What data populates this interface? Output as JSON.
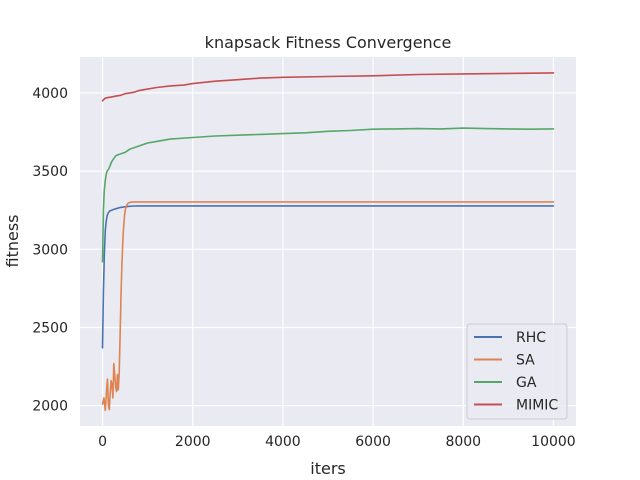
{
  "chart_data": {
    "type": "line",
    "title": "knapsack Fitness Convergence",
    "xlabel": "iters",
    "ylabel": "fitness",
    "xlim": [
      -500,
      10500
    ],
    "ylim": [
      1870,
      4230
    ],
    "xticks": [
      0,
      2000,
      4000,
      6000,
      8000,
      10000
    ],
    "yticks": [
      2000,
      2500,
      3000,
      3500,
      4000
    ],
    "grid": true,
    "legend_position": "lower-right",
    "series": [
      {
        "name": "RHC",
        "color": "#4c72b0",
        "x": [
          0,
          20,
          40,
          60,
          80,
          100,
          130,
          160,
          200,
          250,
          300,
          400,
          500,
          600,
          700,
          800,
          1000,
          2000,
          4000,
          6000,
          8000,
          10000
        ],
        "y": [
          2370,
          2720,
          2960,
          3120,
          3180,
          3215,
          3235,
          3245,
          3250,
          3255,
          3260,
          3268,
          3272,
          3275,
          3277,
          3278,
          3278,
          3278,
          3278,
          3278,
          3278,
          3278
        ]
      },
      {
        "name": "SA",
        "color": "#dd8452",
        "x": [
          0,
          30,
          60,
          90,
          110,
          130,
          150,
          170,
          190,
          210,
          230,
          250,
          270,
          290,
          310,
          330,
          350,
          370,
          390,
          410,
          430,
          450,
          470,
          490,
          510,
          540,
          570,
          600,
          650,
          700,
          800,
          1000,
          2000,
          4000,
          6000,
          8000,
          10000
        ],
        "y": [
          2010,
          2050,
          1970,
          2100,
          2170,
          2000,
          1975,
          2080,
          2160,
          2130,
          2050,
          2270,
          2200,
          2120,
          2090,
          2200,
          2100,
          2210,
          2450,
          2700,
          2900,
          3050,
          3150,
          3220,
          3260,
          3285,
          3295,
          3300,
          3302,
          3303,
          3303,
          3303,
          3303,
          3303,
          3303,
          3303,
          3303
        ]
      },
      {
        "name": "GA",
        "color": "#55a868",
        "x": [
          0,
          20,
          40,
          60,
          80,
          100,
          130,
          160,
          200,
          250,
          300,
          400,
          500,
          600,
          800,
          1000,
          1200,
          1500,
          2000,
          2500,
          3000,
          3500,
          4000,
          4500,
          5000,
          5500,
          6000,
          6500,
          7000,
          7500,
          8000,
          8500,
          9000,
          9500,
          10000
        ],
        "y": [
          2920,
          3250,
          3380,
          3440,
          3480,
          3500,
          3510,
          3530,
          3560,
          3580,
          3600,
          3610,
          3620,
          3640,
          3660,
          3680,
          3690,
          3705,
          3715,
          3725,
          3730,
          3735,
          3740,
          3745,
          3755,
          3760,
          3768,
          3770,
          3772,
          3770,
          3775,
          3772,
          3770,
          3768,
          3770
        ]
      },
      {
        "name": "MIMIC",
        "color": "#c44e52",
        "x": [
          0,
          50,
          100,
          200,
          300,
          400,
          500,
          600,
          700,
          800,
          1000,
          1200,
          1500,
          1800,
          2000,
          2500,
          3000,
          3500,
          4000,
          5000,
          6000,
          7000,
          8000,
          9000,
          10000
        ],
        "y": [
          3950,
          3965,
          3970,
          3975,
          3980,
          3985,
          3995,
          4000,
          4005,
          4015,
          4025,
          4035,
          4045,
          4050,
          4060,
          4075,
          4085,
          4095,
          4100,
          4105,
          4110,
          4118,
          4122,
          4125,
          4128
        ]
      }
    ]
  }
}
